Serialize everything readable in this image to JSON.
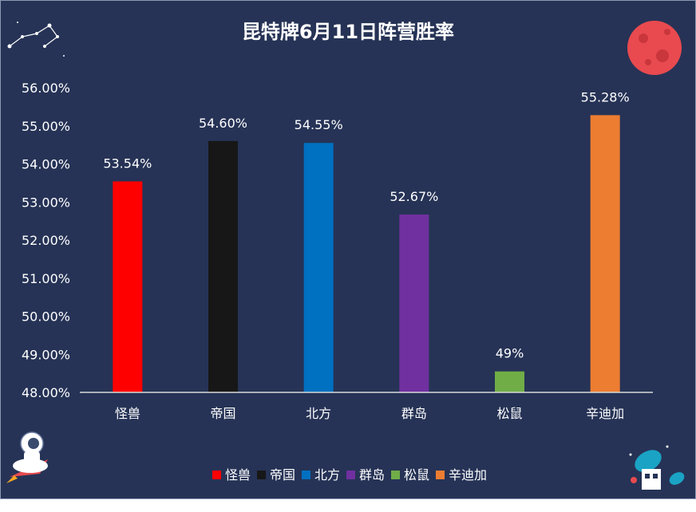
{
  "chart_data": {
    "type": "bar",
    "title": "昆特牌6月11日阵营胜率",
    "categories": [
      "怪兽",
      "帝国",
      "北方",
      "群岛",
      "松鼠",
      "辛迪加"
    ],
    "values": [
      53.54,
      54.6,
      54.55,
      52.67,
      48.55,
      55.28
    ],
    "data_labels": [
      "53.54%",
      "54.60%",
      "54.55%",
      "52.67%",
      "49%",
      "55.28%"
    ],
    "colors": [
      "#ff0000",
      "#171717",
      "#0070c0",
      "#7030a0",
      "#70ad47",
      "#ed7d31"
    ],
    "ylim": [
      48,
      56
    ],
    "yticks": [
      "48.00%",
      "49.00%",
      "50.00%",
      "51.00%",
      "52.00%",
      "53.00%",
      "54.00%",
      "55.00%",
      "56.00%"
    ],
    "legend": [
      "怪兽",
      "帝国",
      "北方",
      "群岛",
      "松鼠",
      "辛迪加"
    ],
    "legend_position": "bottom",
    "grid": false,
    "background": "#263356"
  }
}
